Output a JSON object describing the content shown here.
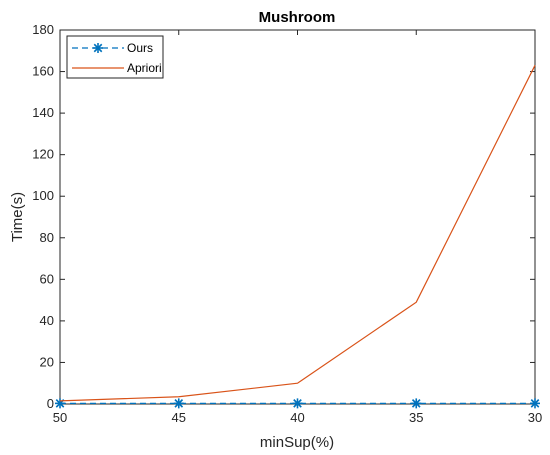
{
  "chart_data": {
    "type": "line",
    "title": "Mushroom",
    "xlabel": "minSup(%)",
    "ylabel": "Time(s)",
    "x": [
      50,
      45,
      40,
      35,
      30
    ],
    "x_ticks": [
      "50",
      "45",
      "40",
      "35",
      "30"
    ],
    "x_reversed": true,
    "xlim": [
      50,
      30
    ],
    "ylim": [
      0,
      180
    ],
    "y_ticks": [
      "0",
      "20",
      "40",
      "60",
      "80",
      "100",
      "120",
      "140",
      "160",
      "180"
    ],
    "grid": false,
    "legend_position": "top-left",
    "series": [
      {
        "name": "Ours",
        "values": [
          0.3,
          0.3,
          0.3,
          0.3,
          0.3
        ],
        "color": "#0072BD",
        "line_style": "dashed",
        "marker": "asterisk"
      },
      {
        "name": "Apriori",
        "values": [
          1.5,
          3.5,
          10,
          49,
          163
        ],
        "color": "#D95319",
        "line_style": "solid",
        "marker": "none"
      }
    ]
  }
}
